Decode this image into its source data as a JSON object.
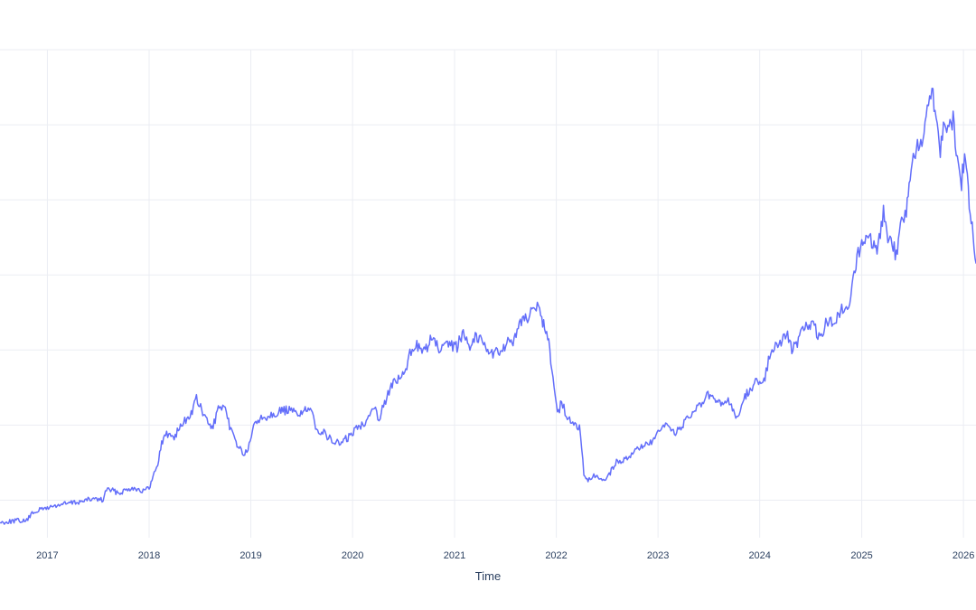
{
  "chart_data": {
    "type": "line",
    "xlabel": "Time",
    "ylabel": "",
    "x_tick_labels": [
      "2017",
      "2018",
      "2019",
      "2020",
      "2021",
      "2022",
      "2023",
      "2024",
      "2025",
      "2026"
    ],
    "xlim": [
      "2016-07-15",
      "2026-02-15"
    ],
    "ylim": [
      0,
      650
    ],
    "y_gridlines": [
      50,
      150,
      250,
      350,
      450,
      550,
      650
    ],
    "grid": true,
    "legend": "none",
    "series": [
      {
        "color": "#636efa",
        "points": [
          [
            "2016-07-15",
            20
          ],
          [
            "2016-09-15",
            23
          ],
          [
            "2016-10-15",
            22
          ],
          [
            "2016-11-15",
            35
          ],
          [
            "2017-01-01",
            40
          ],
          [
            "2017-03-01",
            45
          ],
          [
            "2017-05-01",
            48
          ],
          [
            "2017-06-15",
            52
          ],
          [
            "2017-07-20",
            50
          ],
          [
            "2017-08-01",
            65
          ],
          [
            "2017-09-15",
            60
          ],
          [
            "2017-11-01",
            67
          ],
          [
            "2017-12-15",
            62
          ],
          [
            "2018-01-01",
            66
          ],
          [
            "2018-01-15",
            80
          ],
          [
            "2018-02-01",
            100
          ],
          [
            "2018-02-15",
            125
          ],
          [
            "2018-03-01",
            138
          ],
          [
            "2018-04-01",
            135
          ],
          [
            "2018-05-01",
            152
          ],
          [
            "2018-06-01",
            165
          ],
          [
            "2018-06-20",
            185
          ],
          [
            "2018-07-20",
            160
          ],
          [
            "2018-08-15",
            145
          ],
          [
            "2018-09-10",
            175
          ],
          [
            "2018-10-01",
            168
          ],
          [
            "2018-10-25",
            140
          ],
          [
            "2018-11-20",
            120
          ],
          [
            "2018-12-10",
            110
          ],
          [
            "2018-12-30",
            125
          ],
          [
            "2019-01-15",
            155
          ],
          [
            "2019-02-15",
            160
          ],
          [
            "2019-03-15",
            165
          ],
          [
            "2019-04-15",
            168
          ],
          [
            "2019-05-15",
            170
          ],
          [
            "2019-06-15",
            165
          ],
          [
            "2019-07-15",
            170
          ],
          [
            "2019-08-10",
            165
          ],
          [
            "2019-08-25",
            145
          ],
          [
            "2019-09-20",
            140
          ],
          [
            "2019-10-15",
            130
          ],
          [
            "2019-11-15",
            125
          ],
          [
            "2019-12-15",
            133
          ],
          [
            "2020-01-15",
            145
          ],
          [
            "2020-02-15",
            155
          ],
          [
            "2020-03-15",
            175
          ],
          [
            "2020-04-05",
            160
          ],
          [
            "2020-04-25",
            180
          ],
          [
            "2020-05-15",
            200
          ],
          [
            "2020-06-10",
            210
          ],
          [
            "2020-07-10",
            220
          ],
          [
            "2020-07-25",
            245
          ],
          [
            "2020-08-15",
            260
          ],
          [
            "2020-09-10",
            245
          ],
          [
            "2020-10-10",
            265
          ],
          [
            "2020-11-10",
            250
          ],
          [
            "2020-12-10",
            255
          ],
          [
            "2021-01-10",
            255
          ],
          [
            "2021-02-05",
            275
          ],
          [
            "2021-02-25",
            255
          ],
          [
            "2021-03-20",
            270
          ],
          [
            "2021-04-15",
            260
          ],
          [
            "2021-05-15",
            245
          ],
          [
            "2021-06-15",
            250
          ],
          [
            "2021-07-15",
            260
          ],
          [
            "2021-08-10",
            265
          ],
          [
            "2021-08-25",
            285
          ],
          [
            "2021-09-20",
            295
          ],
          [
            "2021-10-10",
            310
          ],
          [
            "2021-10-25",
            305
          ],
          [
            "2021-11-10",
            290
          ],
          [
            "2021-11-20",
            285
          ],
          [
            "2021-12-05",
            260
          ],
          [
            "2021-12-20",
            215
          ],
          [
            "2022-01-05",
            165
          ],
          [
            "2022-01-20",
            180
          ],
          [
            "2022-02-10",
            160
          ],
          [
            "2022-03-01",
            150
          ],
          [
            "2022-03-25",
            148
          ],
          [
            "2022-04-10",
            85
          ],
          [
            "2022-04-25",
            75
          ],
          [
            "2022-05-20",
            82
          ],
          [
            "2022-06-15",
            75
          ],
          [
            "2022-07-10",
            85
          ],
          [
            "2022-08-05",
            100
          ],
          [
            "2022-08-25",
            102
          ],
          [
            "2022-09-20",
            110
          ],
          [
            "2022-10-15",
            115
          ],
          [
            "2022-11-10",
            125
          ],
          [
            "2022-12-05",
            125
          ],
          [
            "2023-01-05",
            140
          ],
          [
            "2023-02-01",
            150
          ],
          [
            "2023-03-01",
            140
          ],
          [
            "2023-04-01",
            150
          ],
          [
            "2023-05-01",
            165
          ],
          [
            "2023-06-01",
            175
          ],
          [
            "2023-06-25",
            190
          ],
          [
            "2023-07-20",
            185
          ],
          [
            "2023-08-15",
            175
          ],
          [
            "2023-09-10",
            185
          ],
          [
            "2023-09-25",
            170
          ],
          [
            "2023-10-15",
            160
          ],
          [
            "2023-11-05",
            185
          ],
          [
            "2023-12-01",
            200
          ],
          [
            "2024-01-01",
            210
          ],
          [
            "2024-01-20",
            215
          ],
          [
            "2024-02-10",
            250
          ],
          [
            "2024-03-10",
            260
          ],
          [
            "2024-04-10",
            270
          ],
          [
            "2024-04-25",
            250
          ],
          [
            "2024-05-15",
            260
          ],
          [
            "2024-06-15",
            285
          ],
          [
            "2024-07-15",
            280
          ],
          [
            "2024-08-05",
            265
          ],
          [
            "2024-08-25",
            285
          ],
          [
            "2024-09-20",
            290
          ],
          [
            "2024-10-10",
            295
          ],
          [
            "2024-10-25",
            305
          ],
          [
            "2024-11-15",
            310
          ],
          [
            "2024-12-01",
            340
          ],
          [
            "2024-12-15",
            375
          ],
          [
            "2025-01-01",
            390
          ],
          [
            "2025-01-20",
            400
          ],
          [
            "2025-02-10",
            390
          ],
          [
            "2025-02-25",
            375
          ],
          [
            "2025-03-20",
            435
          ],
          [
            "2025-04-05",
            400
          ],
          [
            "2025-04-20",
            395
          ],
          [
            "2025-05-05",
            375
          ],
          [
            "2025-05-20",
            425
          ],
          [
            "2025-06-10",
            430
          ],
          [
            "2025-06-20",
            475
          ],
          [
            "2025-07-05",
            500
          ],
          [
            "2025-07-20",
            520
          ],
          [
            "2025-08-05",
            535
          ],
          [
            "2025-08-20",
            560
          ],
          [
            "2025-09-10",
            600
          ],
          [
            "2025-09-25",
            560
          ],
          [
            "2025-10-10",
            520
          ],
          [
            "2025-10-25",
            555
          ],
          [
            "2025-11-10",
            545
          ],
          [
            "2025-11-25",
            560
          ],
          [
            "2025-12-10",
            500
          ],
          [
            "2025-12-25",
            475
          ],
          [
            "2026-01-05",
            510
          ],
          [
            "2026-01-15",
            480
          ],
          [
            "2026-01-25",
            430
          ],
          [
            "2026-02-05",
            400
          ],
          [
            "2026-02-15",
            370
          ],
          [
            "2026-02-25",
            355
          ],
          [
            "2026-03-10",
            335
          ]
        ]
      }
    ]
  }
}
